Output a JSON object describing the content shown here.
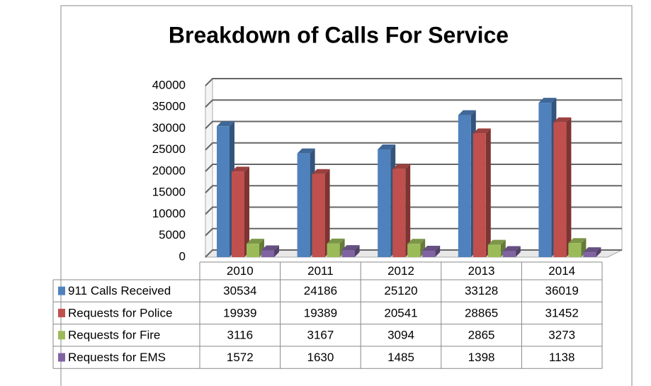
{
  "chart_data": {
    "type": "bar3d",
    "title": "Breakdown of Calls For Service",
    "categories": [
      "2010",
      "2011",
      "2012",
      "2013",
      "2014"
    ],
    "series": [
      {
        "name": "911 Calls Received",
        "color": "#4f81bd",
        "values": [
          30534,
          24186,
          25120,
          33128,
          36019
        ]
      },
      {
        "name": "Requests for Police",
        "color": "#c0504d",
        "values": [
          19939,
          19389,
          20541,
          28865,
          31452
        ]
      },
      {
        "name": "Requests for Fire",
        "color": "#9bbb59",
        "values": [
          3116,
          3167,
          3094,
          2865,
          3273
        ]
      },
      {
        "name": "Requests for EMS",
        "color": "#8064a2",
        "values": [
          1572,
          1630,
          1485,
          1398,
          1138
        ]
      }
    ],
    "ylim": [
      0,
      40000
    ],
    "yticks": [
      0,
      5000,
      10000,
      15000,
      20000,
      25000,
      30000,
      35000,
      40000
    ],
    "grid": true
  }
}
